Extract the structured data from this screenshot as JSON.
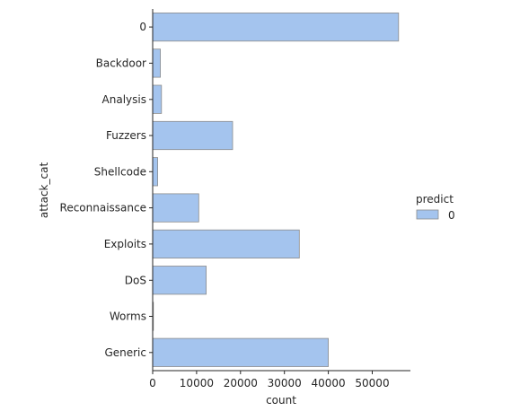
{
  "chart_data": {
    "type": "bar",
    "orientation": "horizontal",
    "title": "",
    "xlabel": "count",
    "ylabel": "attack_cat",
    "xlim": [
      0,
      58700
    ],
    "xticks": [
      0,
      10000,
      20000,
      30000,
      40000,
      50000
    ],
    "categories": [
      "0",
      "Backdoor",
      "Analysis",
      "Fuzzers",
      "Shellcode",
      "Reconnaissance",
      "Exploits",
      "DoS",
      "Worms",
      "Generic"
    ],
    "series": [
      {
        "name": "0",
        "values": [
          56000,
          1750,
          2000,
          18200,
          1150,
          10500,
          33400,
          12200,
          130,
          40000
        ]
      }
    ],
    "legend": {
      "title": "predict",
      "position": "right"
    },
    "grid": false,
    "colors": {
      "bar": "#a4c4ee",
      "bar_edge": "#8c8c8c",
      "axis": "#262626"
    }
  }
}
